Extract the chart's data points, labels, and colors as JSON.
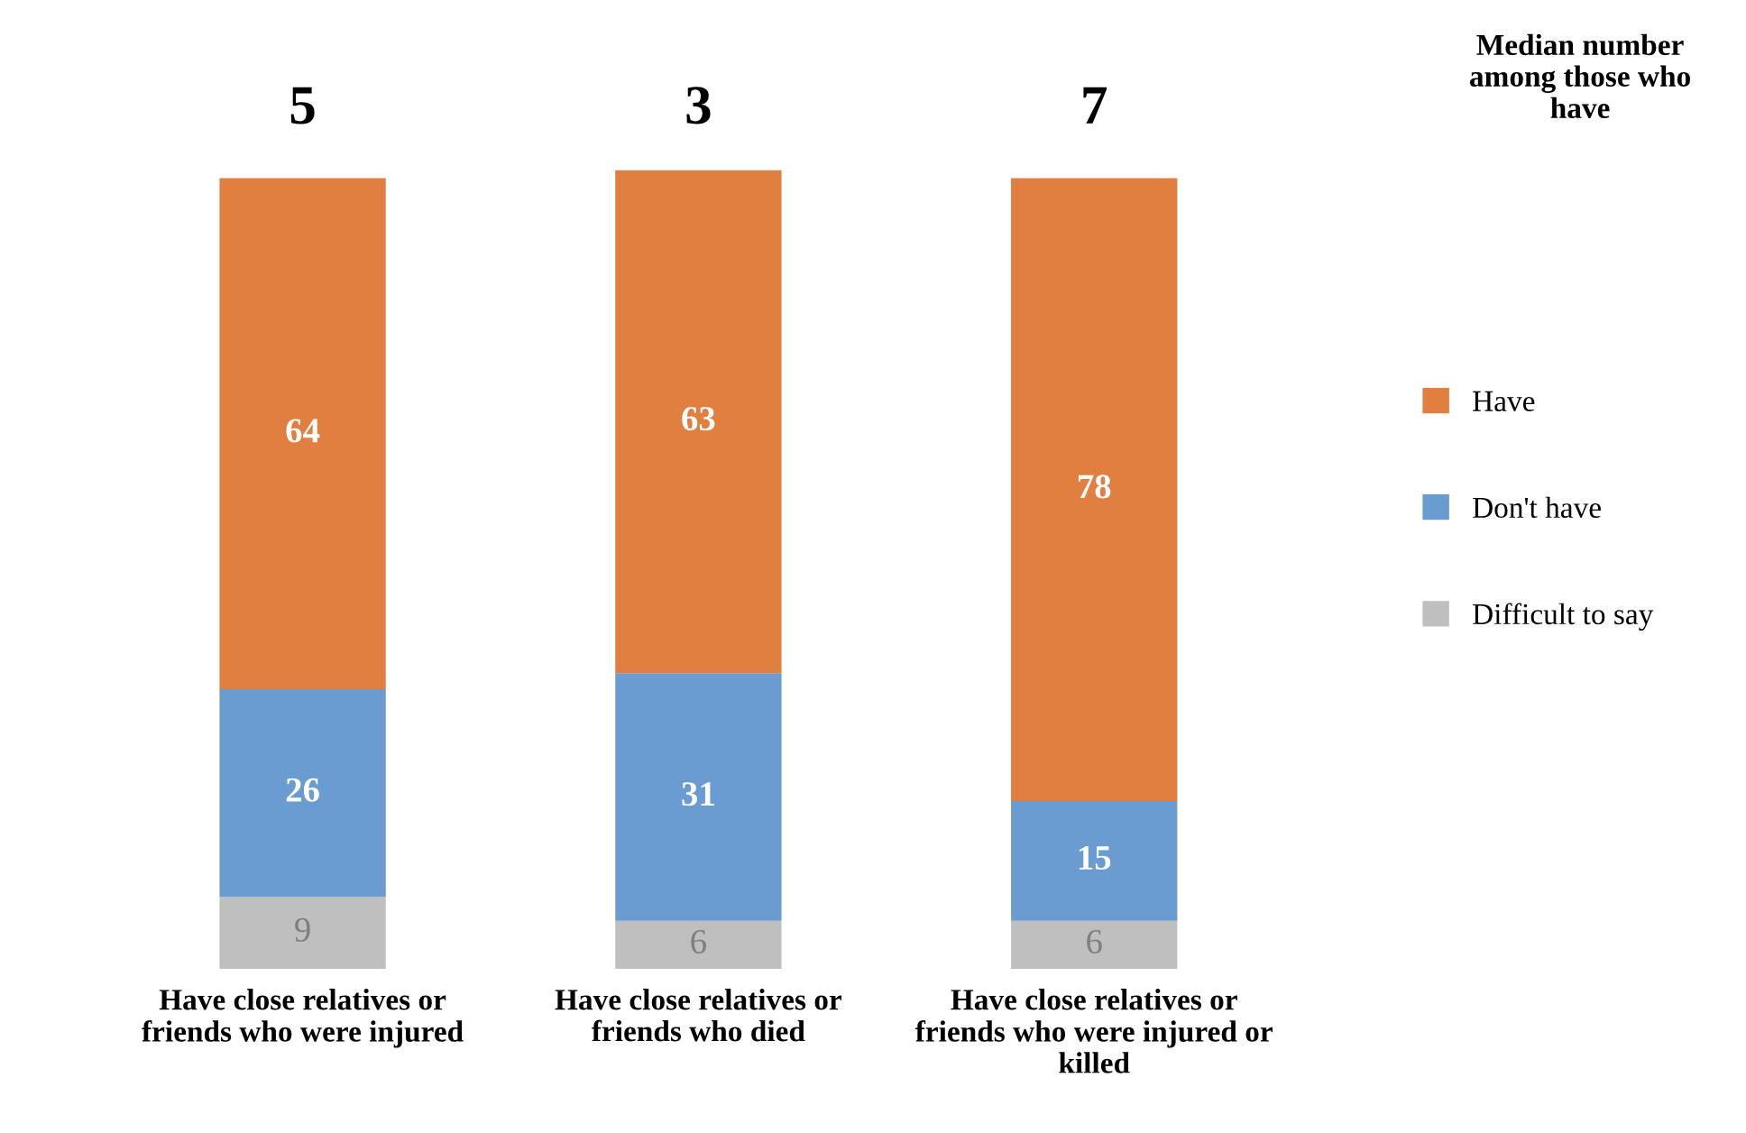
{
  "chart_data": {
    "type": "bar",
    "stacked": true,
    "data_labels": true,
    "grid": false,
    "legend": "right",
    "tick_labels": "x",
    "categories": [
      "Have close relatives or\nfriends who were injured",
      "Have close relatives or\nfriends who died",
      "Have close relatives or\nfriends who were injured or\nkilled"
    ],
    "series": [
      {
        "name": "Difficult to say",
        "color": "#bfbfbf",
        "values": [
          9,
          6,
          6
        ]
      },
      {
        "name": "Don't have",
        "color": "#6a9bd1",
        "values": [
          26,
          31,
          15
        ]
      },
      {
        "name": "Have",
        "color": "#e07f3f",
        "values": [
          64,
          63,
          78
        ]
      }
    ],
    "annotations": [
      "Median number\namong those who\nhave",
      "5",
      "3",
      "7"
    ]
  }
}
